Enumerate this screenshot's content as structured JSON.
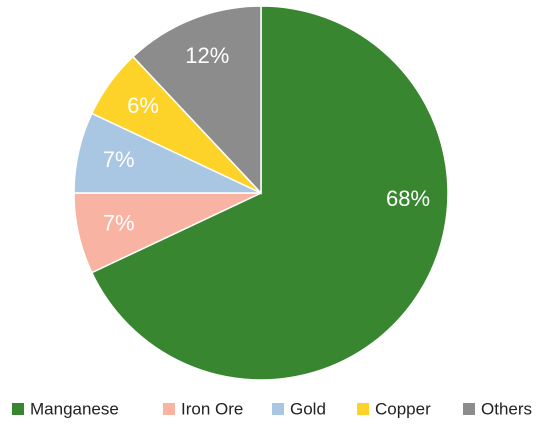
{
  "chart_data": {
    "type": "pie",
    "categories": [
      "Manganese",
      "Iron Ore",
      "Gold",
      "Copper",
      "Others"
    ],
    "values": [
      68,
      7,
      7,
      6,
      12
    ],
    "value_labels": [
      "68%",
      "7%",
      "7%",
      "6%",
      "12%"
    ],
    "colors": [
      "#38862f",
      "#f9b3a3",
      "#a9c6e3",
      "#fdd32a",
      "#8c8c8c"
    ],
    "legend": "bottom"
  }
}
